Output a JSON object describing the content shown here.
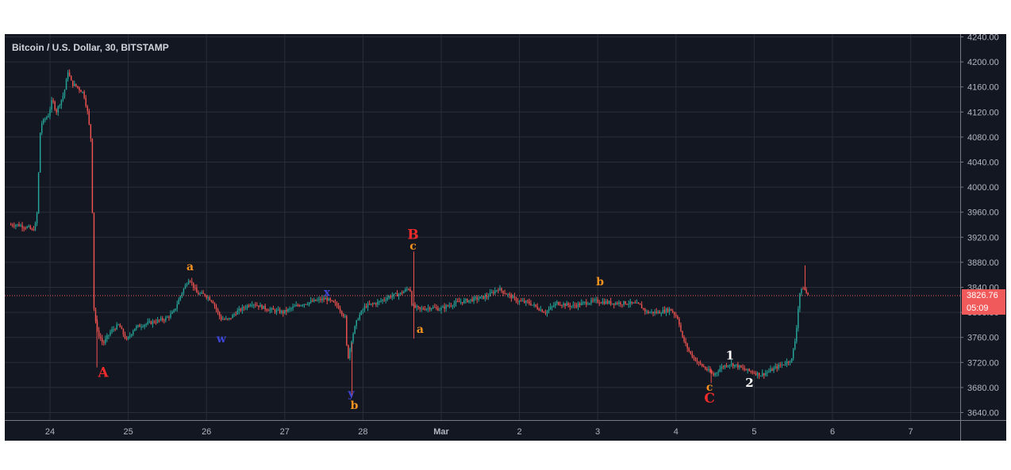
{
  "chart_data": {
    "type": "candlestick",
    "title": "Bitcoin / U.S. Dollar, 30, BITSTAMP",
    "x_tick_labels": [
      "24",
      "25",
      "26",
      "27",
      "28",
      "Mar",
      "2",
      "3",
      "4",
      "5",
      "6",
      "7"
    ],
    "y_tick_values": [
      3640,
      3680,
      3720,
      3760,
      3800,
      3840,
      3880,
      3920,
      3960,
      4000,
      4040,
      4080,
      4120,
      4160,
      4200,
      4240
    ],
    "y_tick_labels": [
      "3640.00",
      "3680.00",
      "3720.00",
      "3760.00",
      "3800.00",
      "3840.00",
      "3880.00",
      "3920.00",
      "3960.00",
      "4000.00",
      "4040.00",
      "4080.00",
      "4120.00",
      "4160.00",
      "4200.00",
      "4240.00"
    ],
    "ylim": [
      3630,
      4250
    ],
    "x_range_days": [
      "Feb 23 12:00",
      "Mar 7 12:00"
    ],
    "grid": true,
    "up_color": "#26a69a",
    "down_color": "#ef5350",
    "background": "#131722",
    "last_price": 3826.76,
    "last_price_label": "3826.76",
    "countdown_label": "05:09",
    "price_path_days": [
      [
        23.6,
        3940
      ],
      [
        23.75,
        3935
      ],
      [
        23.8,
        3930
      ],
      [
        23.85,
        3945
      ],
      [
        23.9,
        4100
      ],
      [
        24.0,
        4115
      ],
      [
        24.05,
        4140
      ],
      [
        24.1,
        4120
      ],
      [
        24.2,
        4150
      ],
      [
        24.25,
        4185
      ],
      [
        24.3,
        4165
      ],
      [
        24.35,
        4162
      ],
      [
        24.45,
        4150
      ],
      [
        24.5,
        4120
      ],
      [
        24.55,
        4070
      ],
      [
        24.58,
        3810
      ],
      [
        24.62,
        3770
      ],
      [
        24.7,
        3750
      ],
      [
        24.8,
        3770
      ],
      [
        24.9,
        3780
      ],
      [
        25.0,
        3755
      ],
      [
        25.1,
        3775
      ],
      [
        25.2,
        3780
      ],
      [
        25.35,
        3785
      ],
      [
        25.5,
        3790
      ],
      [
        25.6,
        3800
      ],
      [
        25.7,
        3830
      ],
      [
        25.8,
        3855
      ],
      [
        25.9,
        3830
      ],
      [
        26.0,
        3828
      ],
      [
        26.1,
        3818
      ],
      [
        26.2,
        3790
      ],
      [
        26.3,
        3788
      ],
      [
        26.4,
        3800
      ],
      [
        26.6,
        3815
      ],
      [
        26.8,
        3805
      ],
      [
        27.0,
        3800
      ],
      [
        27.2,
        3812
      ],
      [
        27.4,
        3818
      ],
      [
        27.55,
        3822
      ],
      [
        27.7,
        3810
      ],
      [
        27.8,
        3790
      ],
      [
        27.82,
        3720
      ],
      [
        27.88,
        3760
      ],
      [
        27.95,
        3790
      ],
      [
        28.05,
        3810
      ],
      [
        28.2,
        3815
      ],
      [
        28.35,
        3825
      ],
      [
        28.5,
        3830
      ],
      [
        28.62,
        3840
      ],
      [
        28.65,
        3810
      ],
      [
        28.75,
        3805
      ],
      [
        28.9,
        3808
      ],
      [
        29.0,
        3805
      ],
      [
        29.2,
        3815
      ],
      [
        29.4,
        3820
      ],
      [
        29.6,
        3825
      ],
      [
        29.75,
        3838
      ],
      [
        29.85,
        3830
      ],
      [
        30.0,
        3818
      ],
      [
        30.15,
        3815
      ],
      [
        30.35,
        3800
      ],
      [
        30.5,
        3815
      ],
      [
        30.7,
        3810
      ],
      [
        30.85,
        3815
      ],
      [
        31.0,
        3818
      ],
      [
        31.2,
        3815
      ],
      [
        31.4,
        3815
      ],
      [
        31.55,
        3812
      ],
      [
        31.65,
        3800
      ],
      [
        31.8,
        3800
      ],
      [
        31.95,
        3805
      ],
      [
        32.05,
        3790
      ],
      [
        32.1,
        3760
      ],
      [
        32.2,
        3735
      ],
      [
        32.3,
        3720
      ],
      [
        32.4,
        3710
      ],
      [
        32.5,
        3700
      ],
      [
        32.6,
        3712
      ],
      [
        32.7,
        3718
      ],
      [
        32.8,
        3715
      ],
      [
        32.9,
        3708
      ],
      [
        33.0,
        3705
      ],
      [
        33.1,
        3700
      ],
      [
        33.2,
        3705
      ],
      [
        33.3,
        3712
      ],
      [
        33.4,
        3718
      ],
      [
        33.5,
        3725
      ],
      [
        33.55,
        3760
      ],
      [
        33.6,
        3830
      ],
      [
        33.65,
        3840
      ],
      [
        33.7,
        3828
      ]
    ],
    "spikes": [
      {
        "x": 24.6,
        "low": 3712
      },
      {
        "x": 27.86,
        "low": 3665
      },
      {
        "x": 28.65,
        "high": 3897,
        "low": 3758
      },
      {
        "x": 32.45,
        "low": 3687
      },
      {
        "x": 33.65,
        "high": 3875
      }
    ]
  },
  "wave_labels": [
    {
      "text": "A",
      "x": 24.68,
      "price": 3697,
      "color": "#ef2b2b",
      "size": 17
    },
    {
      "text": "a",
      "x": 25.79,
      "price": 3867,
      "color": "#f7931e",
      "size": 14
    },
    {
      "text": "w",
      "x": 26.19,
      "price": 3752,
      "color": "#3f46d6",
      "size": 14
    },
    {
      "text": "x",
      "x": 27.54,
      "price": 3826,
      "color": "#3f46d6",
      "size": 14
    },
    {
      "text": "y",
      "x": 27.85,
      "price": 3665,
      "color": "#3f46d6",
      "size": 14
    },
    {
      "text": "b",
      "x": 27.89,
      "price": 3646,
      "color": "#f7931e",
      "size": 14
    },
    {
      "text": "B",
      "x": 28.64,
      "price": 3917,
      "color": "#ef2b2b",
      "size": 17
    },
    {
      "text": "c",
      "x": 28.64,
      "price": 3900,
      "color": "#f7931e",
      "size": 14
    },
    {
      "text": "a",
      "x": 28.73,
      "price": 3767,
      "color": "#f7931e",
      "size": 14
    },
    {
      "text": "b",
      "x": 31.03,
      "price": 3843,
      "color": "#f7931e",
      "size": 14
    },
    {
      "text": "1",
      "x": 32.69,
      "price": 3725,
      "color": "#ffffff",
      "size": 15
    },
    {
      "text": "c",
      "x": 32.43,
      "price": 3675,
      "color": "#f7931e",
      "size": 14
    },
    {
      "text": "2",
      "x": 32.94,
      "price": 3681,
      "color": "#ffffff",
      "size": 15
    },
    {
      "text": "C",
      "x": 32.43,
      "price": 3656,
      "color": "#ef2b2b",
      "size": 17
    }
  ]
}
